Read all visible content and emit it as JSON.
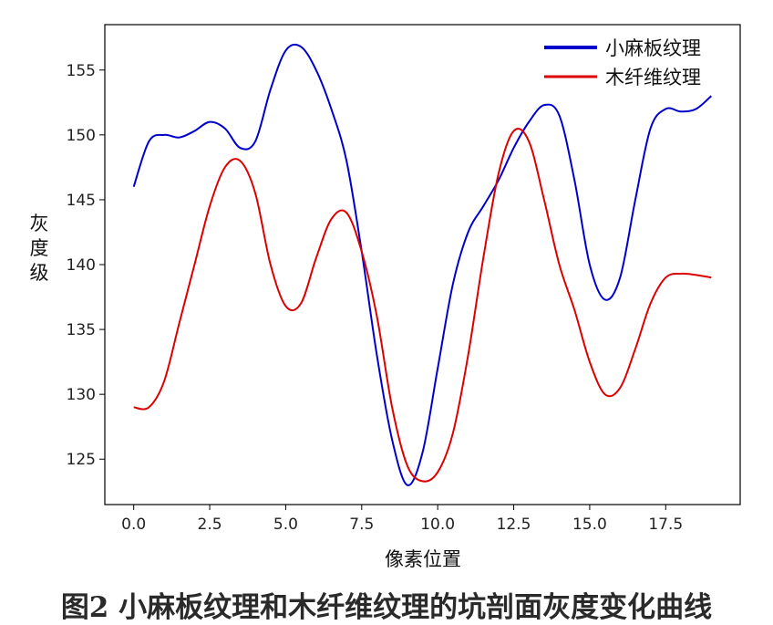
{
  "caption": "图2 小麻板纹理和木纤维纹理的坑剖面灰度变化曲线",
  "chart_data": {
    "type": "line",
    "title": "",
    "xlabel": "像素位置",
    "ylabel": "灰度级",
    "xlim": [
      -0.95,
      19.95
    ],
    "ylim": [
      121.5,
      158.5
    ],
    "xticks": [
      0.0,
      2.5,
      5.0,
      7.5,
      10.0,
      12.5,
      15.0,
      17.5
    ],
    "xtick_labels": [
      "0.0",
      "2.5",
      "5.0",
      "7.5",
      "10.0",
      "12.5",
      "15.0",
      "17.5"
    ],
    "yticks": [
      125,
      130,
      135,
      140,
      145,
      150,
      155
    ],
    "ytick_labels": [
      "125",
      "130",
      "135",
      "140",
      "145",
      "150",
      "155"
    ],
    "grid": false,
    "legend_position": "top-right",
    "x": [
      0,
      0.5,
      1,
      1.5,
      2,
      2.5,
      3,
      3.5,
      4,
      4.5,
      5,
      5.5,
      6,
      6.5,
      7,
      7.5,
      8,
      8.5,
      9,
      9.5,
      10,
      10.5,
      11,
      11.5,
      12,
      12.5,
      13,
      13.5,
      14,
      14.5,
      15,
      15.5,
      16,
      16.5,
      17,
      17.5,
      18,
      18.5,
      19
    ],
    "series": [
      {
        "name": "小麻板纹理",
        "color": "#0000cc",
        "values": [
          146.0,
          149.5,
          150.0,
          149.8,
          150.3,
          151.0,
          150.5,
          149.0,
          149.5,
          153.5,
          156.5,
          156.8,
          155.0,
          152.0,
          148.0,
          141.0,
          133.0,
          126.5,
          123.0,
          125.5,
          132.0,
          138.5,
          142.5,
          144.5,
          146.5,
          149.0,
          151.0,
          152.3,
          151.5,
          146.5,
          140.0,
          137.3,
          139.0,
          145.0,
          150.5,
          152.0,
          151.8,
          152.0,
          153.0
        ]
      },
      {
        "name": "木纤维纹理",
        "color": "#dd0000",
        "values": [
          129.0,
          129.0,
          131.0,
          135.5,
          140.0,
          144.5,
          147.5,
          148.0,
          145.5,
          140.0,
          136.8,
          137.0,
          140.5,
          143.5,
          144.0,
          141.0,
          136.0,
          129.0,
          124.5,
          123.3,
          124.0,
          127.0,
          133.0,
          140.5,
          147.0,
          150.3,
          149.5,
          145.0,
          140.0,
          136.5,
          132.5,
          130.0,
          130.5,
          133.5,
          137.0,
          139.0,
          139.3,
          139.2,
          139.0
        ]
      }
    ]
  }
}
